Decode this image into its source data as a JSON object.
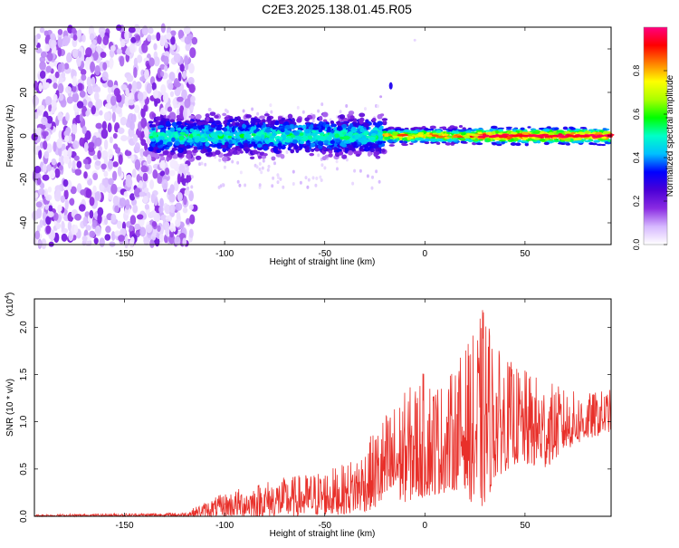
{
  "title": "C2E3.2025.138.01.45.R05",
  "chart_data": [
    {
      "type": "heatmap",
      "xlabel": "Height of straight line (km)",
      "ylabel": "Frequency (Hz)",
      "xlim": [
        -195,
        93
      ],
      "ylim": [
        -50,
        50
      ],
      "xticks": [
        -150,
        -100,
        -50,
        0,
        50
      ],
      "yticks": [
        -40,
        -20,
        0,
        20,
        40
      ],
      "colorbar": {
        "label": "Normalized spectral amplitude",
        "range": [
          0.0,
          1.0
        ],
        "ticks": [
          "0.0",
          "0.2",
          "0.4",
          "0.6",
          "0.8"
        ],
        "colormap": [
          "#ffffff",
          "#d6b8ff",
          "#8a2be2",
          "#4b00d6",
          "#0000ff",
          "#00bfff",
          "#00ffc8",
          "#00ff00",
          "#aaff00",
          "#ffff00",
          "#ff8000",
          "#ff0000",
          "#ff0080"
        ]
      },
      "regions": [
        {
          "description_x": [
            -195,
            -115
          ],
          "freq_range": [
            -50,
            50
          ],
          "amplitude": [
            0.0,
            0.2
          ]
        },
        {
          "description_x": [
            -137,
            -20
          ],
          "freq_center": 0,
          "freq_halfwidth": 8,
          "amplitude": [
            0.2,
            0.6
          ]
        },
        {
          "description_x": [
            -20,
            93
          ],
          "freq_center": 0,
          "freq_halfwidth": 3,
          "amplitude": [
            0.6,
            1.0
          ]
        }
      ]
    },
    {
      "type": "line",
      "xlabel": "Height of straight line (km)",
      "ylabel": "SNR (10 * v/v)",
      "scale_label": "(x10",
      "scale_exp": "4",
      "scale_tail": ")",
      "xlim": [
        -195,
        93
      ],
      "ylim": [
        0.0,
        2.3
      ],
      "xticks": [
        -150,
        -100,
        -50,
        0,
        50
      ],
      "yticks": [
        "0.0",
        "0.5",
        "1.0",
        "1.5",
        "2.0"
      ],
      "color": "#e8302a",
      "envelope": {
        "x": [
          -195,
          -150,
          -120,
          -110,
          -100,
          -80,
          -60,
          -40,
          -30,
          -20,
          0,
          10,
          20,
          25,
          30,
          35,
          45,
          60,
          70,
          80,
          93
        ],
        "upper": [
          0.02,
          0.03,
          0.04,
          0.15,
          0.25,
          0.38,
          0.45,
          0.55,
          0.75,
          1.1,
          1.55,
          1.4,
          1.8,
          1.95,
          2.3,
          1.8,
          1.6,
          1.45,
          1.35,
          1.3,
          1.35
        ],
        "lower": [
          0.0,
          0.0,
          0.0,
          0.0,
          0.0,
          0.0,
          0.0,
          0.02,
          0.05,
          0.1,
          0.2,
          0.25,
          0.3,
          0.05,
          0.1,
          0.4,
          0.55,
          0.5,
          0.7,
          0.8,
          0.9
        ]
      }
    }
  ]
}
